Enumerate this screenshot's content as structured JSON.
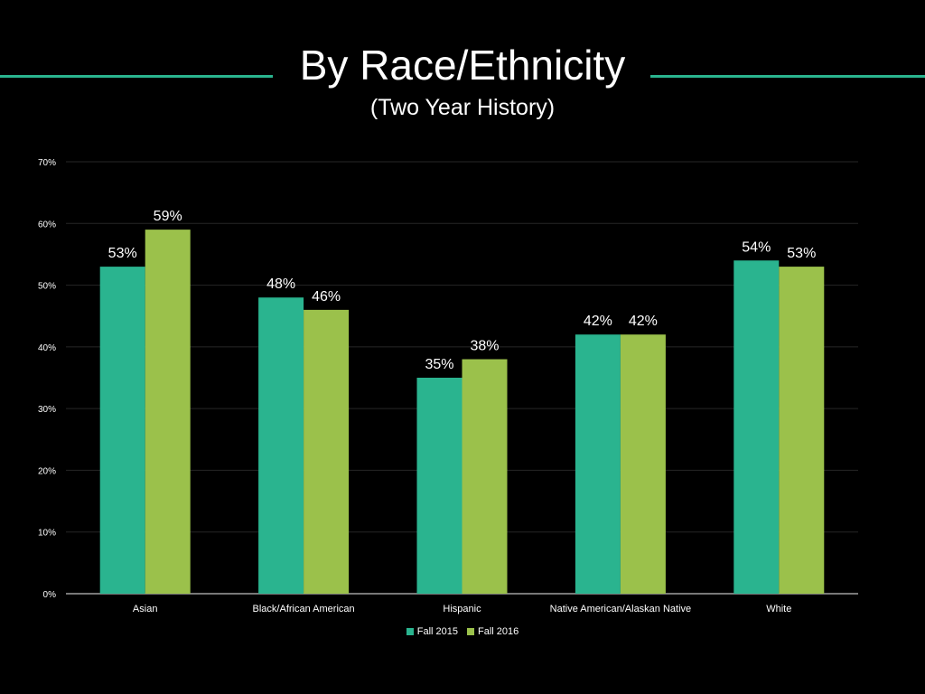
{
  "slide": {
    "title": "By Race/Ethnicity",
    "subtitle": "(Two Year History)",
    "accent_color": "#2ab48f"
  },
  "chart_data": {
    "type": "bar",
    "categories": [
      "Asian",
      "Black/African American",
      "Hispanic",
      "Native American/Alaskan Native",
      "White"
    ],
    "series": [
      {
        "name": "Fall 2015",
        "color": "#2ab48f",
        "values": [
          53,
          48,
          35,
          42,
          54
        ],
        "labels": [
          "53%",
          "48%",
          "35%",
          "42%",
          "54%"
        ]
      },
      {
        "name": "Fall 2016",
        "color": "#9bc14b",
        "values": [
          59,
          46,
          38,
          42,
          53
        ],
        "labels": [
          "59%",
          "46%",
          "38%",
          "42%",
          "53%"
        ]
      }
    ],
    "y_ticks": [
      "0%",
      "10%",
      "20%",
      "30%",
      "40%",
      "50%",
      "60%",
      "70%"
    ],
    "ylim": [
      0,
      70
    ],
    "grid": true,
    "legend_position": "bottom"
  }
}
